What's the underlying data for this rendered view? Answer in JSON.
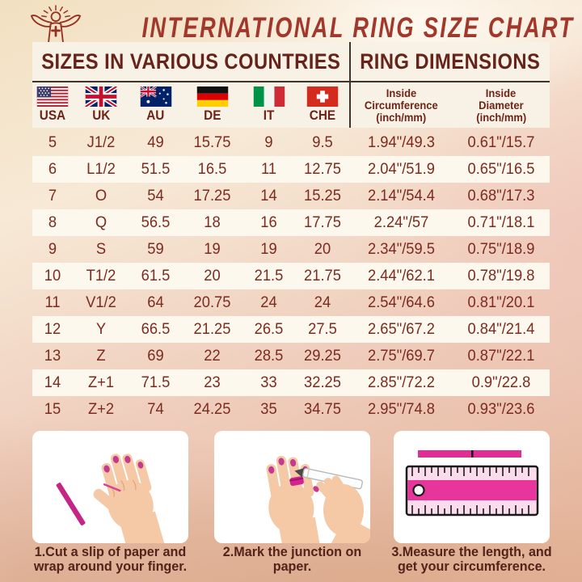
{
  "title": "INTERNATIONAL RING SIZE CHART",
  "section_headers": {
    "left": "SIZES IN VARIOUS COUNTRIES",
    "right": "RING DIMENSIONS"
  },
  "countries": [
    {
      "code": "USA",
      "flag": "usa-flag"
    },
    {
      "code": "UK",
      "flag": "uk-flag"
    },
    {
      "code": "AU",
      "flag": "australia-flag"
    },
    {
      "code": "DE",
      "flag": "germany-flag"
    },
    {
      "code": "IT",
      "flag": "italy-flag"
    },
    {
      "code": "CHE",
      "flag": "switzerland-flag"
    }
  ],
  "dimension_headers": [
    {
      "lines": [
        "Inside",
        "Circumference",
        "(inch/mm)"
      ]
    },
    {
      "lines": [
        "Inside",
        "Diameter",
        "(inch/mm)"
      ]
    }
  ],
  "chart_data": {
    "type": "table",
    "title": "INTERNATIONAL RING SIZE CHART",
    "columns": [
      "USA",
      "UK",
      "AU",
      "DE",
      "IT",
      "CHE",
      "Inside Circumference (inch/mm)",
      "Inside Diameter (inch/mm)"
    ],
    "rows": [
      [
        "5",
        "J1/2",
        "49",
        "15.75",
        "9",
        "9.5",
        "1.94\"/49.3",
        "0.61\"/15.7"
      ],
      [
        "6",
        "L1/2",
        "51.5",
        "16.5",
        "11",
        "12.75",
        "2.04\"/51.9",
        "0.65\"/16.5"
      ],
      [
        "7",
        "O",
        "54",
        "17.25",
        "14",
        "15.25",
        "2.14\"/54.4",
        "0.68\"/17.3"
      ],
      [
        "8",
        "Q",
        "56.5",
        "18",
        "16",
        "17.75",
        "2.24\"/57",
        "0.71\"/18.1"
      ],
      [
        "9",
        "S",
        "59",
        "19",
        "19",
        "20",
        "2.34\"/59.5",
        "0.75\"/18.9"
      ],
      [
        "10",
        "T1/2",
        "61.5",
        "20",
        "21.5",
        "21.75",
        "2.44\"/62.1",
        "0.78\"/19.8"
      ],
      [
        "11",
        "V1/2",
        "64",
        "20.75",
        "24",
        "24",
        "2.54\"/64.6",
        "0.81\"/20.1"
      ],
      [
        "12",
        "Y",
        "66.5",
        "21.25",
        "26.5",
        "27.5",
        "2.65\"/67.2",
        "0.84\"/21.4"
      ],
      [
        "13",
        "Z",
        "69",
        "22",
        "28.5",
        "29.25",
        "2.75\"/69.7",
        "0.87\"/22.1"
      ],
      [
        "14",
        "Z+1",
        "71.5",
        "23",
        "33",
        "32.25",
        "2.85\"/72.2",
        "0.9\"/22.8"
      ],
      [
        "15",
        "Z+2",
        "74",
        "24.25",
        "35",
        "34.75",
        "2.95\"/74.8",
        "0.93\"/23.6"
      ]
    ]
  },
  "instructions": [
    {
      "caption": "1.Cut a slip of paper and wrap around your finger.",
      "illustration": "hand-with-paper-strip"
    },
    {
      "caption": "2.Mark the junction on paper.",
      "illustration": "hands-marking-with-pen"
    },
    {
      "caption": "3.Measure the length, and get your circumference.",
      "illustration": "ruler-measuring-strip"
    }
  ],
  "colors": {
    "title_red": "#a1382b",
    "header_maroon": "#66231a",
    "table_text": "#7b2b20",
    "band_bg": "#f8f2e6",
    "stripe_bg": "#fdf8ee",
    "pink_accent": "#d6218f",
    "caption_brown": "#53221a"
  }
}
